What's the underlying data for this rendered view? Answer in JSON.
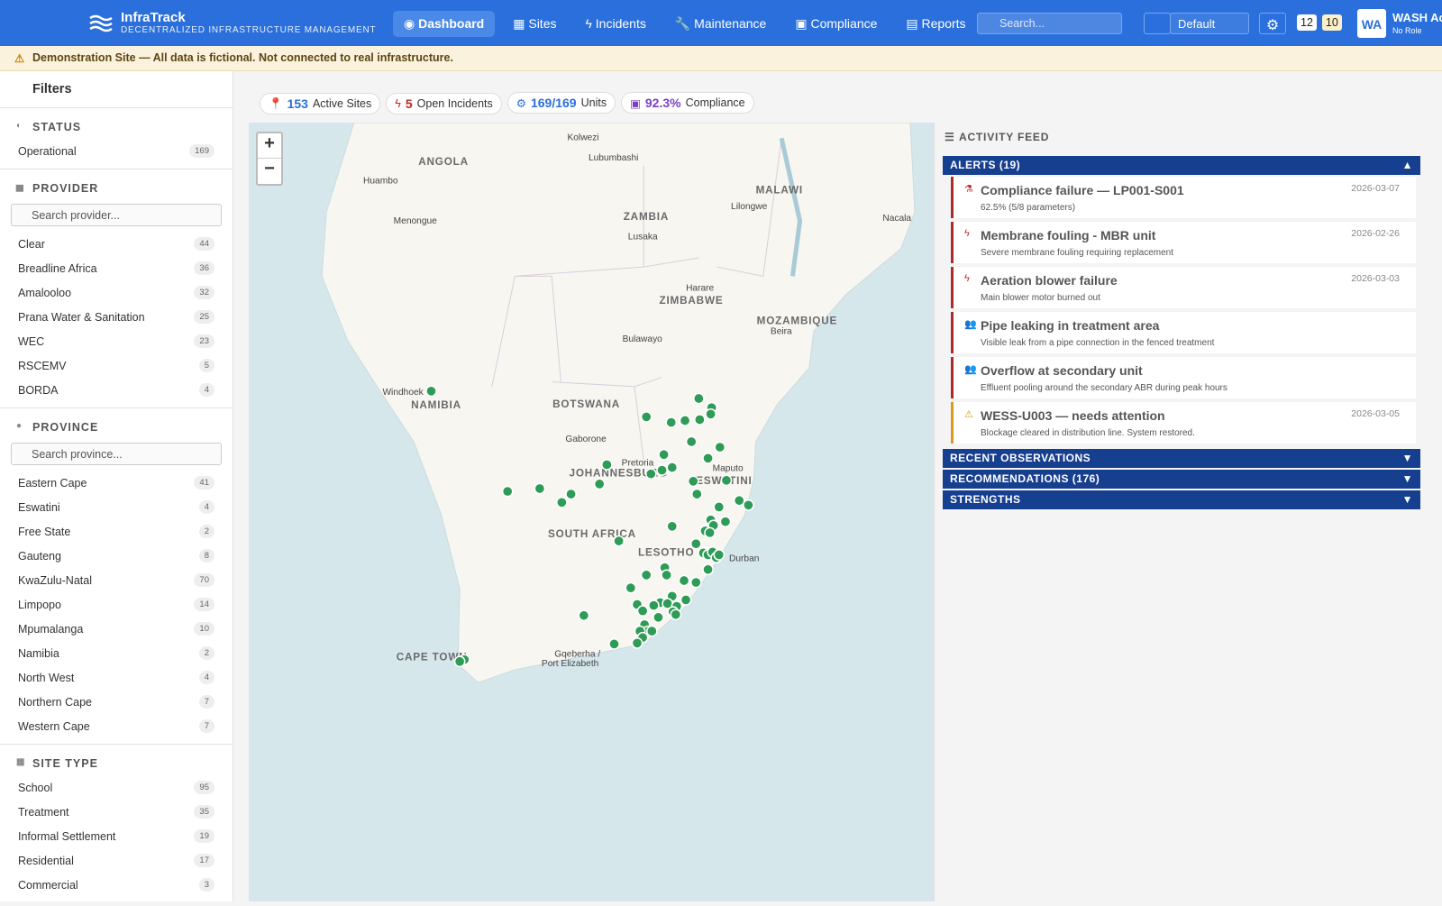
{
  "header": {
    "brand": "InfraTrack",
    "tagline": "DECENTRALIZED INFRASTRUCTURE MANAGEMENT",
    "nav": [
      "Dashboard",
      "Sites",
      "Incidents",
      "Maintenance",
      "Compliance",
      "Reports"
    ],
    "search": "Search...",
    "select": "Default",
    "badges": [
      "12",
      "10"
    ],
    "avatar": "WA",
    "user": "WASH Ac",
    "role": "No Role"
  },
  "banner": "Demonstration Site — All data is fictional. Not connected to real infrastructure.",
  "filters": {
    "title": "Filters",
    "sections": [
      {
        "title": "STATUS",
        "items": [
          {
            "name": "Operational",
            "count": 169
          }
        ]
      },
      {
        "title": "PROVIDER",
        "search": "Search provider...",
        "items": [
          {
            "name": "Clear",
            "count": 44
          },
          {
            "name": "Breadline Africa",
            "count": 36
          },
          {
            "name": "Amalooloo",
            "count": 32
          },
          {
            "name": "Prana Water & Sanitation",
            "count": 25
          },
          {
            "name": "WEC",
            "count": 23
          },
          {
            "name": "RSCEMV",
            "count": 5
          },
          {
            "name": "BORDA",
            "count": 4
          }
        ]
      },
      {
        "title": "PROVINCE",
        "search": "Search province...",
        "items": [
          {
            "name": "Eastern Cape",
            "count": 41
          },
          {
            "name": "Eswatini",
            "count": 4
          },
          {
            "name": "Free State",
            "count": 2
          },
          {
            "name": "Gauteng",
            "count": 8
          },
          {
            "name": "KwaZulu-Natal",
            "count": 70
          },
          {
            "name": "Limpopo",
            "count": 14
          },
          {
            "name": "Mpumalanga",
            "count": 10
          },
          {
            "name": "Namibia",
            "count": 2
          },
          {
            "name": "North West",
            "count": 4
          },
          {
            "name": "Northern Cape",
            "count": 7
          },
          {
            "name": "Western Cape",
            "count": 7
          }
        ]
      },
      {
        "title": "SITE TYPE",
        "items": [
          {
            "name": "School",
            "count": 95
          },
          {
            "name": "Treatment",
            "count": 35
          },
          {
            "name": "Informal Settlement",
            "count": 19
          },
          {
            "name": "Residential",
            "count": 17
          },
          {
            "name": "Commercial",
            "count": 3
          }
        ]
      }
    ]
  },
  "stats": [
    {
      "value": 153,
      "label": "Active Sites"
    },
    {
      "value": 5,
      "label": "Open Incidents"
    },
    {
      "value": "169/169",
      "label": "Units"
    },
    {
      "value": "92.3%",
      "label": "Compliance"
    }
  ],
  "map": {
    "zoom": [
      "+",
      "−"
    ],
    "labels": [
      "Kolwezi",
      "Lubumbashi",
      "ANGOLA",
      "Huambo",
      "Menongue",
      "ZAMBIA",
      "Lusaka",
      "MALAWI",
      "Lilongwe",
      "Nacala",
      "Harare",
      "ZIMBABWE",
      "MOZAMBIQUE",
      "Beira",
      "Bulawayo",
      "Windhoek",
      "NAMIBIA",
      "BOTSWANA",
      "Gaborone",
      "Pretoria",
      "JOHANNESBURG",
      "Maputo",
      "ESWATINI",
      "SOUTH AFRICA",
      "LESOTHO",
      "Durban",
      "CAPE TOWN",
      "Gqeberha /",
      "Port Elizabeth"
    ]
  },
  "feed": {
    "title": "ACTIVITY FEED",
    "alerts": {
      "title": "ALERTS (19)",
      "items": [
        {
          "title": "Compliance failure — LP001-S001",
          "desc": "62.5% (5/8 parameters)",
          "date": "2026-03-07"
        },
        {
          "title": "Membrane fouling - MBR unit",
          "desc": "Severe membrane fouling requiring replacement",
          "date": "2026-02-26"
        },
        {
          "title": "Aeration blower failure",
          "desc": "Main blower motor burned out",
          "date": "2026-03-03"
        },
        {
          "title": "Pipe leaking in treatment area",
          "desc": "Visible leak from a pipe connection in the fenced treatment"
        },
        {
          "title": "Overflow at secondary unit",
          "desc": "Effluent pooling around the secondary ABR during peak hours"
        },
        {
          "title": "WESS-U003 — needs attention",
          "desc": "Blockage cleared in distribution line. System restored.",
          "date": "2026-03-05"
        }
      ]
    },
    "sections": [
      "RECENT OBSERVATIONS",
      "RECOMMENDATIONS (176)",
      "STRENGTHS"
    ]
  }
}
